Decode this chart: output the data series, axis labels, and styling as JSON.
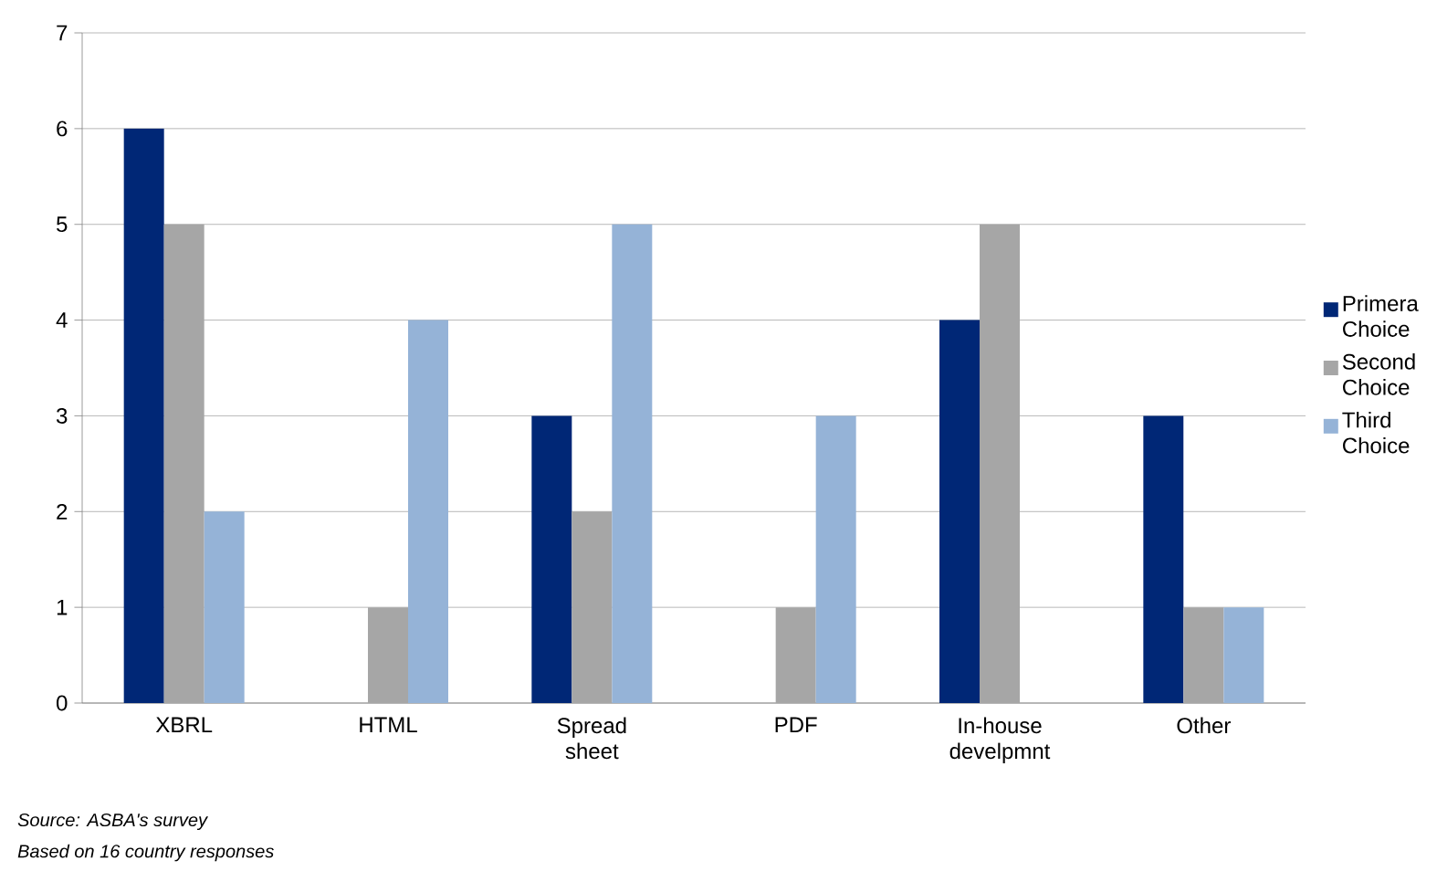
{
  "chart_data": {
    "type": "bar",
    "categories": [
      "XBRL",
      "HTML",
      "Spread sheet",
      "PDF",
      "In-house develpmnt",
      "Other"
    ],
    "series": [
      {
        "name": "Primera Choice",
        "color": "#002776",
        "values": [
          6,
          0,
          3,
          0,
          4,
          3
        ]
      },
      {
        "name": "Second Choice",
        "color": "#a6a6a6",
        "values": [
          5,
          1,
          2,
          1,
          5,
          1
        ]
      },
      {
        "name": "Third Choice",
        "color": "#95b3d7",
        "values": [
          2,
          4,
          5,
          3,
          0,
          1
        ]
      }
    ],
    "ylim": [
      0,
      7
    ],
    "yticks": [
      0,
      1,
      2,
      3,
      4,
      5,
      6,
      7
    ],
    "grid": "y",
    "legend": "right",
    "annotations": [
      "Source: ASBA's survey",
      "Based on 16 country responses"
    ]
  }
}
